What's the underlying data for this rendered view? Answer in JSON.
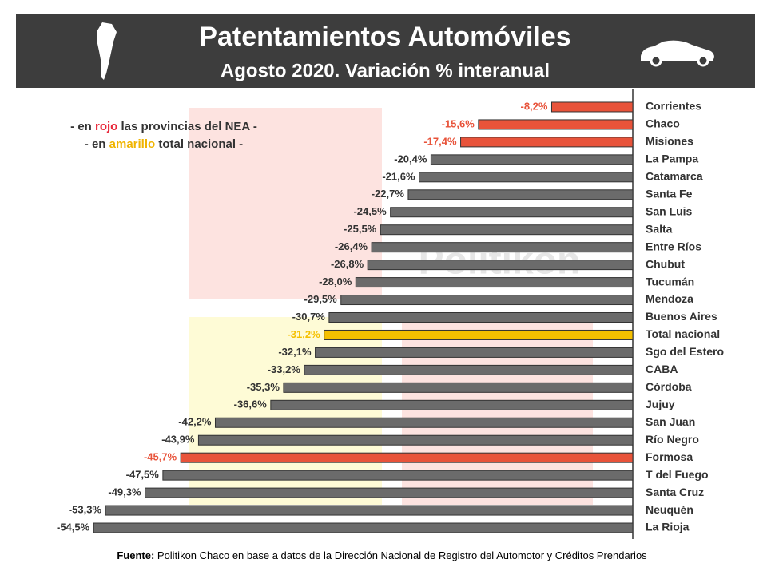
{
  "chart_data": {
    "type": "bar",
    "orientation": "horizontal",
    "title": "Patentamientos Automóviles",
    "subtitle": "Agosto 2020. Variación % interanual",
    "annotation_1": [
      "- en ",
      "rojo",
      " las provincias del NEA -"
    ],
    "annotation_2": [
      "- en ",
      "amarillo",
      " total nacional -"
    ],
    "watermark": "Politikon",
    "source": [
      "Fuente:",
      " Politikon Chaco en base a datos de la Dirección Nacional de Registro del Automotor y Créditos Prendarios"
    ],
    "categories": [
      "Corrientes",
      "Chaco",
      "Misiones",
      "La Pampa",
      "Catamarca",
      "Santa Fe",
      "San Luis",
      "Salta",
      "Entre Ríos",
      "Chubut",
      "Tucumán",
      "Mendoza",
      "Buenos Aires",
      "Total nacional",
      "Sgo del Estero",
      "CABA",
      "Córdoba",
      "Jujuy",
      "San Juan",
      "Río Negro",
      "Formosa",
      "T del Fuego",
      "Santa Cruz",
      "Neuquén",
      "La Rioja"
    ],
    "values": [
      -8.2,
      -15.6,
      -17.4,
      -20.4,
      -21.6,
      -22.7,
      -24.5,
      -25.5,
      -26.4,
      -26.8,
      -28.0,
      -29.5,
      -30.7,
      -31.2,
      -32.1,
      -33.2,
      -35.3,
      -36.6,
      -42.2,
      -43.9,
      -45.7,
      -47.5,
      -49.3,
      -53.3,
      -54.5
    ],
    "value_labels": [
      "-8,2%",
      "-15,6%",
      "-17,4%",
      "-20,4%",
      "-21,6%",
      "-22,7%",
      "-24,5%",
      "-25,5%",
      "-26,4%",
      "-26,8%",
      "-28,0%",
      "-29,5%",
      "-30,7%",
      "-31,2%",
      "-32,1%",
      "-33,2%",
      "-35,3%",
      "-36,6%",
      "-42,2%",
      "-43,9%",
      "-45,7%",
      "-47,5%",
      "-49,3%",
      "-53,3%",
      "-54,5%"
    ],
    "color": "#6b6b6b",
    "colors": [
      "#e8533a",
      "#e8533a",
      "#e8533a",
      "#6b6b6b",
      "#6b6b6b",
      "#6b6b6b",
      "#6b6b6b",
      "#6b6b6b",
      "#6b6b6b",
      "#6b6b6b",
      "#6b6b6b",
      "#6b6b6b",
      "#6b6b6b",
      "#f5c000",
      "#6b6b6b",
      "#6b6b6b",
      "#6b6b6b",
      "#6b6b6b",
      "#6b6b6b",
      "#6b6b6b",
      "#e8533a",
      "#6b6b6b",
      "#6b6b6b",
      "#6b6b6b",
      "#6b6b6b"
    ],
    "xlim": [
      -55,
      0
    ]
  }
}
